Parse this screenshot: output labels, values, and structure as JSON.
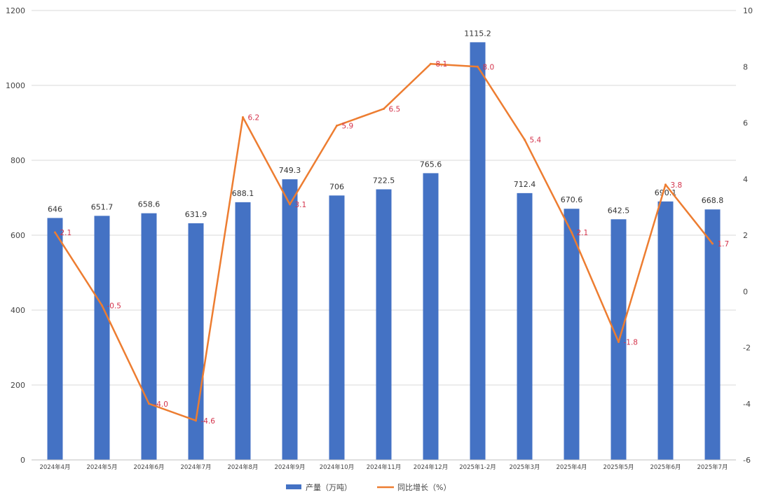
{
  "chart_data": {
    "type": "bar",
    "categories": [
      "2024年4月",
      "2024年5月",
      "2024年6月",
      "2024年7月",
      "2024年8月",
      "2024年9月",
      "2024年10月",
      "2024年11月",
      "2024年12月",
      "2025年1-2月",
      "2025年3月",
      "2025年4月",
      "2025年5月",
      "2025年6月",
      "2025年7月"
    ],
    "series": [
      {
        "name": "产量（万吨）",
        "kind": "bar",
        "axis": "left",
        "color": "#4472c4",
        "values": [
          646,
          651.7,
          658.6,
          631.9,
          688.1,
          749.3,
          706,
          722.5,
          765.6,
          1115.2,
          712.4,
          670.6,
          642.5,
          690.1,
          668.8
        ],
        "labels": [
          "646",
          "651.7",
          "658.6",
          "631.9",
          "688.1",
          "749.3",
          "706",
          "722.5",
          "765.6",
          "1115.2",
          "712.4",
          "670.6",
          "642.5",
          "690.1",
          "668.8"
        ]
      },
      {
        "name": "同比增长（%）",
        "kind": "line",
        "axis": "right",
        "color": "#ed7d31",
        "values": [
          2.1,
          -0.5,
          -4.0,
          -4.6,
          6.2,
          3.1,
          5.9,
          6.5,
          8.1,
          8.0,
          5.4,
          2.1,
          -1.8,
          3.8,
          1.7
        ],
        "labels": [
          "2.1",
          "-0.5",
          "-4.0",
          "-4.6",
          "6.2",
          "3.1",
          "5.9",
          "6.5",
          "8.1",
          "8.0",
          "5.4",
          "2.1",
          "-1.8",
          "3.8",
          "1.7"
        ]
      }
    ],
    "y_left": {
      "range": [
        0,
        1200
      ],
      "ticks": [
        "0",
        "200",
        "400",
        "600",
        "800",
        "1000",
        "1200"
      ]
    },
    "y_right": {
      "range": [
        -6,
        10
      ],
      "ticks": [
        "-6",
        "-4",
        "-2",
        "0",
        "2",
        "4",
        "6",
        "8",
        "10"
      ]
    },
    "grid": true,
    "legend_position": "bottom-center",
    "label_color": "#d4344c"
  }
}
